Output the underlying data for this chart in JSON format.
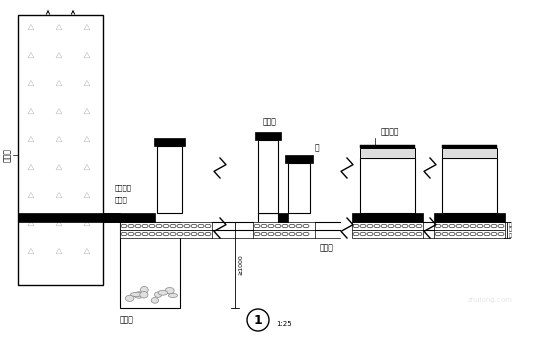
{
  "bg_color": "#ffffff",
  "labels": {
    "retaining_wall": "挡土墙",
    "collection_frame": "集水框架",
    "drain_pipe": "疏水管",
    "sump": "集水井",
    "drainage_trough": "能流台",
    "beam": "梁",
    "drainage_layer": "疏水层",
    "cushion_layer": "素砼垫层",
    "note1": "1",
    "scale": "1:25",
    "dim_label": "≥1000"
  },
  "fig_width": 5.6,
  "fig_height": 3.49,
  "dpi": 100
}
